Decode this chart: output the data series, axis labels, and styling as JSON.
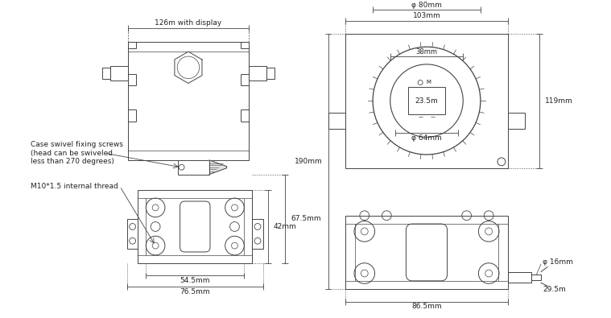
{
  "bg_color": "#ffffff",
  "lc": "#444444",
  "tc": "#222222",
  "figsize": [
    7.59,
    3.95
  ],
  "dpi": 100,
  "annotations": {
    "top_dim": "126m with display",
    "label1": "Case swivel fixing screws",
    "label2": "(head can be swiveled",
    "label3": "less than 270 degrees)",
    "label4": "M10*1.5 internal thread",
    "d42": "42mm",
    "d675": "67.5mm",
    "d545": "54.5mm",
    "d765": "76.5mm",
    "r103": "103mm",
    "rphi80": "φ 80mm",
    "r38": "38mm",
    "r235": "23.5m",
    "r190": "190mm",
    "r119": "119mm",
    "rphi64": "φ 64mm",
    "rphi16": "φ 16mm",
    "r295": "29.5m",
    "r865": "86.5mm"
  }
}
